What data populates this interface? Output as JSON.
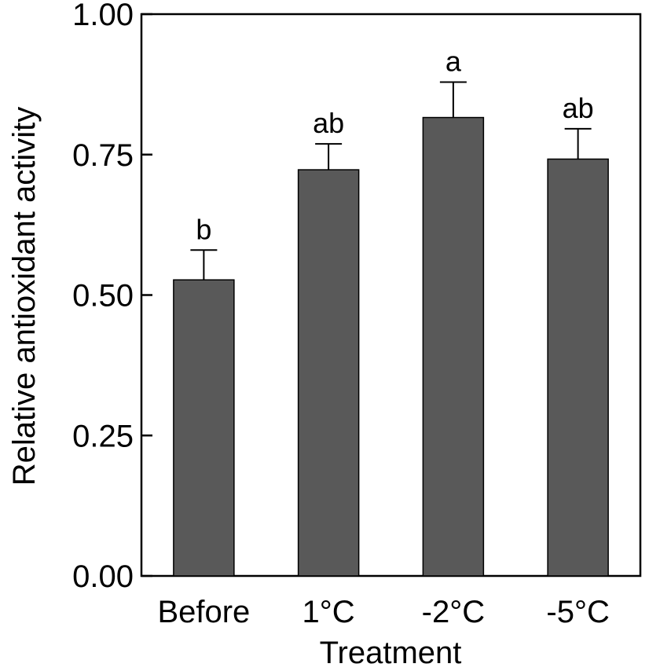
{
  "chart_data": {
    "type": "bar",
    "categories": [
      "Before",
      "1°C",
      "-2°C",
      "-5°C"
    ],
    "values": [
      0.527,
      0.723,
      0.816,
      0.742
    ],
    "errors": [
      0.053,
      0.046,
      0.063,
      0.054
    ],
    "significance": [
      "b",
      "ab",
      "a",
      "ab"
    ],
    "title": "",
    "xlabel": "Treatment",
    "ylabel": "Relative antioxidant activity",
    "ylim": [
      0,
      1
    ],
    "yticks": [
      "0.00",
      "0.25",
      "0.50",
      "0.75",
      "1.00"
    ],
    "ytick_values": [
      0,
      0.25,
      0.5,
      0.75,
      1
    ],
    "bar_color": "#595959"
  }
}
